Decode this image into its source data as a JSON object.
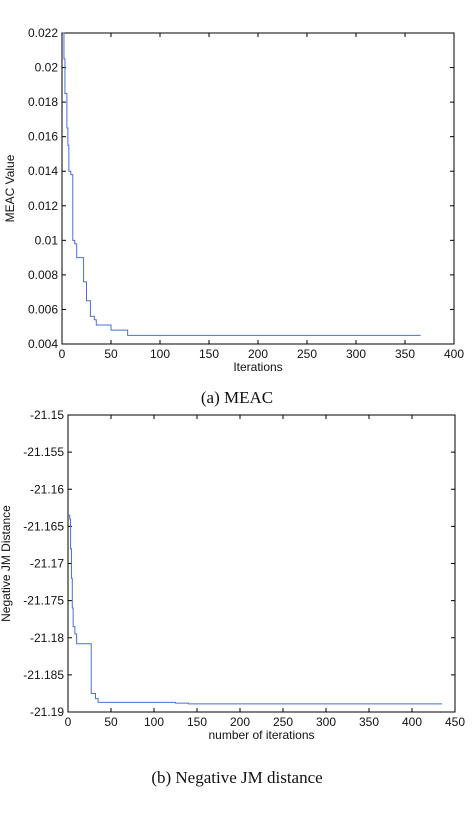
{
  "chart_data": [
    {
      "type": "line",
      "ylabel": "MEAC Value",
      "xlabel": "Iterations",
      "xlim": [
        0,
        400
      ],
      "ylim": [
        0.004,
        0.022
      ],
      "xticks": [
        "0",
        "50",
        "100",
        "150",
        "200",
        "250",
        "300",
        "350",
        "400"
      ],
      "yticks": [
        "0.004",
        "0.006",
        "0.008",
        "0.01",
        "0.012",
        "0.014",
        "0.016",
        "0.018",
        "0.02",
        "0.022"
      ],
      "grid": false,
      "line_color": "#4a6fdb",
      "series": [
        {
          "x": [
            1,
            2,
            3,
            5,
            6,
            7,
            9,
            11,
            13,
            15,
            17,
            20,
            22,
            23,
            25,
            26,
            29,
            30,
            33,
            35,
            38,
            40,
            44,
            48,
            50,
            55,
            60,
            64,
            67,
            70,
            80,
            100,
            150,
            200,
            250,
            300,
            366
          ],
          "y": [
            0.022,
            0.0205,
            0.0185,
            0.0165,
            0.0155,
            0.014,
            0.0138,
            0.01,
            0.0098,
            0.009,
            0.009,
            0.009,
            0.0076,
            0.0076,
            0.0065,
            0.0065,
            0.0056,
            0.0056,
            0.0054,
            0.0051,
            0.0051,
            0.0051,
            0.0051,
            0.0051,
            0.0048,
            0.0048,
            0.0048,
            0.0048,
            0.0045,
            0.0045,
            0.0045,
            0.0045,
            0.0045,
            0.0045,
            0.0045,
            0.0045,
            0.0045
          ]
        }
      ]
    },
    {
      "type": "line",
      "ylabel": "Negative JM Distance",
      "xlabel": "number of iterations",
      "xlim": [
        0,
        450
      ],
      "ylim": [
        -21.19,
        -21.15
      ],
      "xticks": [
        "0",
        "50",
        "100",
        "150",
        "200",
        "250",
        "300",
        "350",
        "400",
        "450"
      ],
      "yticks": [
        "-21.19",
        "-21.185",
        "-21.18",
        "-21.175",
        "-21.17",
        "-21.165",
        "-21.16",
        "-21.155",
        "-21.15"
      ],
      "grid": false,
      "line_color": "#4a6fdb",
      "series": [
        {
          "x": [
            1,
            2,
            3,
            4,
            5,
            6,
            7,
            8,
            10,
            12,
            14,
            20,
            26,
            27,
            30,
            32,
            35,
            40,
            50,
            60,
            100,
            120,
            125,
            140,
            150,
            200,
            300,
            400,
            435
          ],
          "y": [
            -21.1635,
            -21.164,
            -21.168,
            -21.172,
            -21.176,
            -21.1785,
            -21.1785,
            -21.1795,
            -21.1808,
            -21.1808,
            -21.1808,
            -21.1808,
            -21.1808,
            -21.1875,
            -21.1875,
            -21.1882,
            -21.1887,
            -21.1887,
            -21.1887,
            -21.1887,
            -21.1887,
            -21.1887,
            -21.1888,
            -21.1889,
            -21.1889,
            -21.1889,
            -21.1889,
            -21.1889,
            -21.1889
          ]
        }
      ]
    }
  ],
  "captions": {
    "a": "(a) MEAC",
    "b": "(b) Negative JM distance"
  }
}
